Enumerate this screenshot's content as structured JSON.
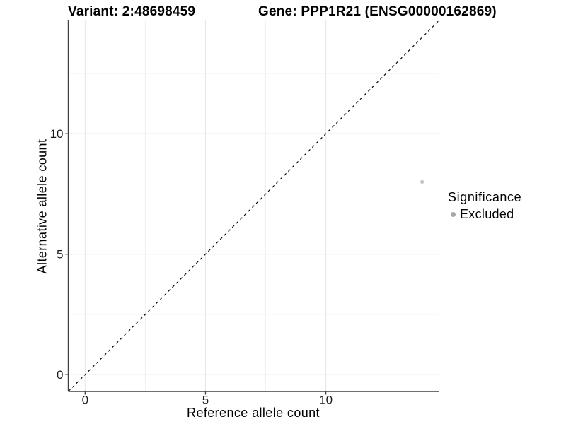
{
  "header": {
    "variant_title": "Variant: 2:48698459",
    "gene_title": "Gene: PPP1R21 (ENSG00000162869)"
  },
  "chart_data": {
    "type": "scatter",
    "xlabel": "Reference allele count",
    "ylabel": "Alternative allele count",
    "xlim": [
      -0.7,
      14.7
    ],
    "ylim": [
      -0.7,
      14.7
    ],
    "x_major_ticks": [
      0,
      5,
      10
    ],
    "y_major_ticks": [
      0,
      5,
      10
    ],
    "x_minor_gridlines": [
      2.5,
      7.5,
      12.5
    ],
    "y_minor_gridlines": [
      2.5,
      7.5,
      12.5
    ],
    "grid": "major+minor",
    "aspect": "equal",
    "reference_line": {
      "kind": "identity y=x",
      "style": "dashed",
      "color": "#000000"
    },
    "series": [
      {
        "name": "Excluded",
        "point_color": "#c4c4c4",
        "points": [
          {
            "x": 14,
            "y": 8
          }
        ]
      }
    ],
    "legend": {
      "title": "Significance",
      "position": "right",
      "entries": [
        {
          "label": "Excluded",
          "color": "#a8a8a8"
        }
      ]
    }
  },
  "style": {
    "grid_major_color": "#e8e8e8",
    "grid_minor_color": "#f1f1f1",
    "axis_line_color": "#404040",
    "tick_label_color": "#1a1a1a",
    "point_radius": 2.6,
    "tick_label_font_px": 17
  }
}
